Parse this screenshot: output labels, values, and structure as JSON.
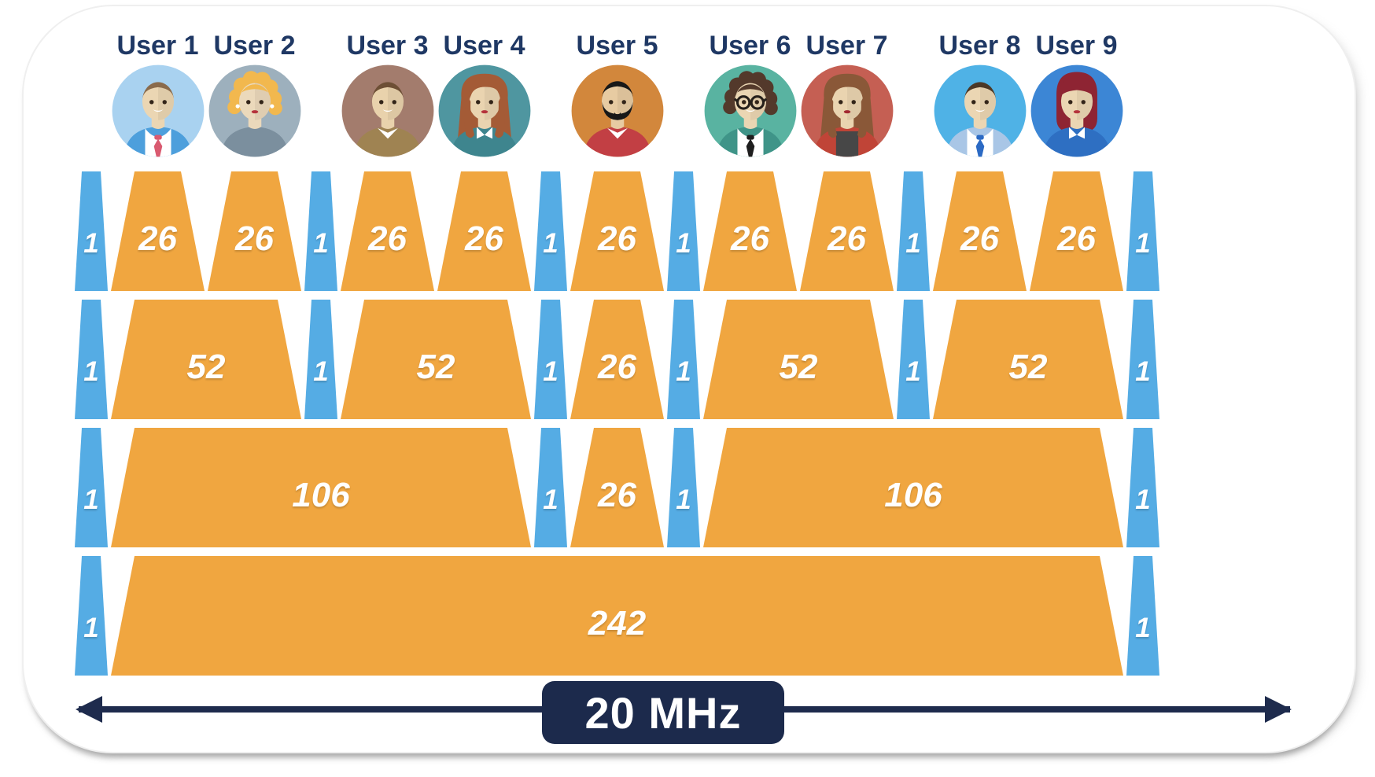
{
  "colors": {
    "ru_fill": "#F0A640",
    "null_fill": "#55ACE4",
    "user_label": "#1F3864",
    "arrow_navy": "#1E2B4D",
    "box_bg": "#1C2A4C",
    "number_text": "#FFFFFF"
  },
  "users": [
    {
      "label": "User 1",
      "avatar": {
        "bg": "#A9D2F0",
        "skin": "#EBD6B3",
        "hair": "#8A6B4C",
        "style": "short",
        "shirt": "#4D9FDC",
        "suit": true,
        "tie": "#D95A70"
      }
    },
    {
      "label": "User 2",
      "avatar": {
        "bg": "#9DB0BD",
        "skin": "#EBD9BB",
        "hair": "#F2B84E",
        "style": "curly",
        "shirt": "#7B8F9E",
        "lips": "#B5333B",
        "earrings": true
      }
    },
    {
      "label": "User 3",
      "avatar": {
        "bg": "#A37C6D",
        "skin": "#E9D2AC",
        "hair": "#6D4F35",
        "style": "short",
        "shirt": "#9F8352",
        "vcollar": true
      }
    },
    {
      "label": "User 4",
      "avatar": {
        "bg": "#4F96A0",
        "skin": "#EAD4B0",
        "hair": "#A45B36",
        "style": "long",
        "shirt": "#3E858E",
        "lips": "#B5333B",
        "collar": true
      }
    },
    {
      "label": "User 5",
      "avatar": {
        "bg": "#D2873C",
        "skin": "#E7CBA2",
        "hair": "#181818",
        "style": "shortflat",
        "shirt": "#C23F44",
        "beard": true,
        "vcollar": true
      }
    },
    {
      "label": "User 6",
      "avatar": {
        "bg": "#59B3A1",
        "skin": "#EBD6B3",
        "hair": "#53392B",
        "style": "curly",
        "shirt": "#3F9488",
        "suit": true,
        "tie": "#1E1E1E",
        "glasses": true
      }
    },
    {
      "label": "User 7",
      "avatar": {
        "bg": "#C55F53",
        "skin": "#EAD4B0",
        "hair": "#8A5838",
        "style": "long",
        "shirt": "#C04437",
        "innershirt": "#474747",
        "lips": "#A22830"
      }
    },
    {
      "label": "User 8",
      "avatar": {
        "bg": "#4FB2E6",
        "skin": "#EBD6B3",
        "hair": "#4C3826",
        "style": "short",
        "shirt": "#A9C6E6",
        "suit": true,
        "tie": "#2B6AC4"
      }
    },
    {
      "label": "User 9",
      "avatar": {
        "bg": "#3C86D5",
        "skin": "#EBD6B3",
        "hair": "#8E2433",
        "style": "bob",
        "shirt": "#2E6FC2",
        "lips": "#B5333B",
        "collar": true
      }
    }
  ],
  "rows": [
    {
      "cells": [
        {
          "type": "null",
          "label": "1"
        },
        {
          "type": "ru",
          "label": "26"
        },
        {
          "type": "ru",
          "label": "26"
        },
        {
          "type": "null",
          "label": "1"
        },
        {
          "type": "ru",
          "label": "26"
        },
        {
          "type": "ru",
          "label": "26"
        },
        {
          "type": "null",
          "label": "1"
        },
        {
          "type": "ru",
          "label": "26"
        },
        {
          "type": "null",
          "label": "1"
        },
        {
          "type": "ru",
          "label": "26"
        },
        {
          "type": "ru",
          "label": "26"
        },
        {
          "type": "null",
          "label": "1"
        },
        {
          "type": "ru",
          "label": "26"
        },
        {
          "type": "ru",
          "label": "26"
        },
        {
          "type": "null",
          "label": "1"
        }
      ]
    },
    {
      "cells": [
        {
          "type": "null",
          "label": "1"
        },
        {
          "type": "ru",
          "label": "52"
        },
        {
          "type": "null",
          "label": "1"
        },
        {
          "type": "ru",
          "label": "52"
        },
        {
          "type": "null",
          "label": "1"
        },
        {
          "type": "ru",
          "label": "26"
        },
        {
          "type": "null",
          "label": "1"
        },
        {
          "type": "ru",
          "label": "52"
        },
        {
          "type": "null",
          "label": "1"
        },
        {
          "type": "ru",
          "label": "52"
        },
        {
          "type": "null",
          "label": "1"
        }
      ]
    },
    {
      "cells": [
        {
          "type": "null",
          "label": "1"
        },
        {
          "type": "ru",
          "label": "106"
        },
        {
          "type": "null",
          "label": "1"
        },
        {
          "type": "ru",
          "label": "26"
        },
        {
          "type": "null",
          "label": "1"
        },
        {
          "type": "ru",
          "label": "106"
        },
        {
          "type": "null",
          "label": "1"
        }
      ]
    },
    {
      "cells": [
        {
          "type": "null",
          "label": "1"
        },
        {
          "type": "ru",
          "label": "242"
        },
        {
          "type": "null",
          "label": "1"
        }
      ]
    }
  ],
  "freq": {
    "label": "20 MHz"
  }
}
